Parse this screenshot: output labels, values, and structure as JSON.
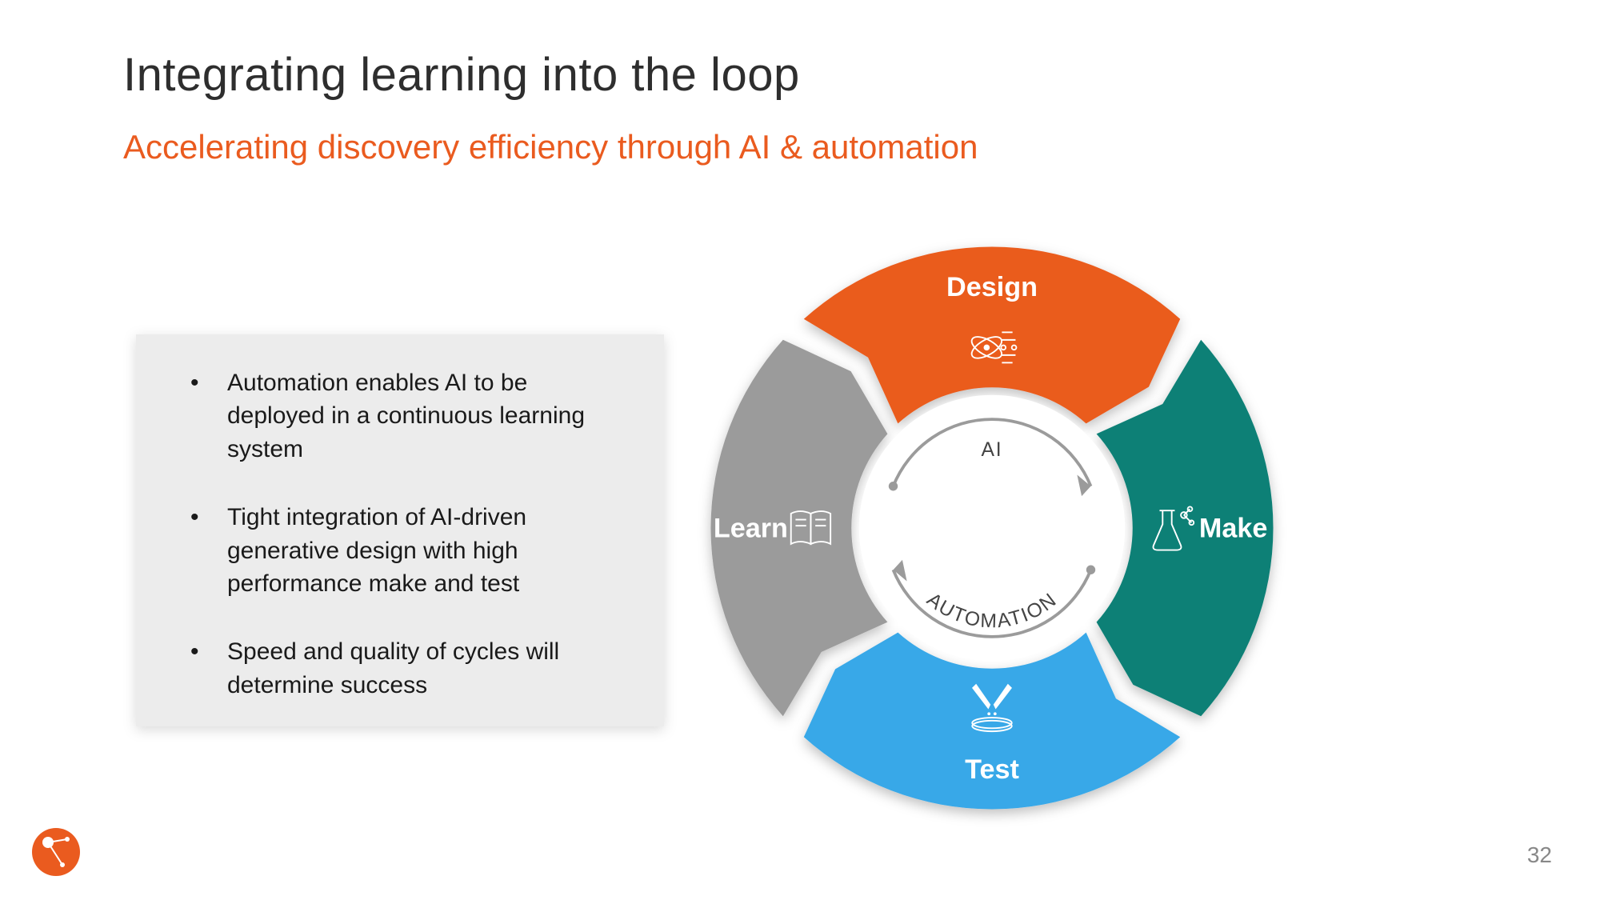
{
  "title": "Integrating learning into the loop",
  "subtitle": "Accelerating discovery efficiency through AI & automation",
  "subtitle_color": "#ea5b1f",
  "title_color": "#2e2e2e",
  "background_color": "#ffffff",
  "text_box": {
    "background": "#ececec",
    "text_color": "#1a1a1a",
    "bullets": [
      "Automation enables AI to be deployed in a continuous learning system",
      "Tight integration of AI-driven generative design with high performance make and test",
      "Speed and quality of cycles will determine success"
    ],
    "font_size": 30
  },
  "cycle": {
    "outer_radius": 370,
    "inner_radius": 185,
    "gap_deg": 6,
    "segments": [
      {
        "key": "design",
        "label": "Design",
        "color": "#ea5b1f",
        "icon": "atom-network"
      },
      {
        "key": "make",
        "label": "Make",
        "color": "#0e8076",
        "icon": "flask"
      },
      {
        "key": "test",
        "label": "Test",
        "color": "#38a8e8",
        "icon": "pipette-dish"
      },
      {
        "key": "learn",
        "label": "Learn",
        "color": "#9b9b9b",
        "icon": "book"
      }
    ],
    "center": {
      "top_label": "AI",
      "bottom_label": "AUTOMATION",
      "arrow_color": "#9b9b9b",
      "background": "#ffffff"
    },
    "shadow_color": "rgba(0,0,0,0.25)"
  },
  "page_number": "32",
  "logo_color": "#ea5b1f"
}
